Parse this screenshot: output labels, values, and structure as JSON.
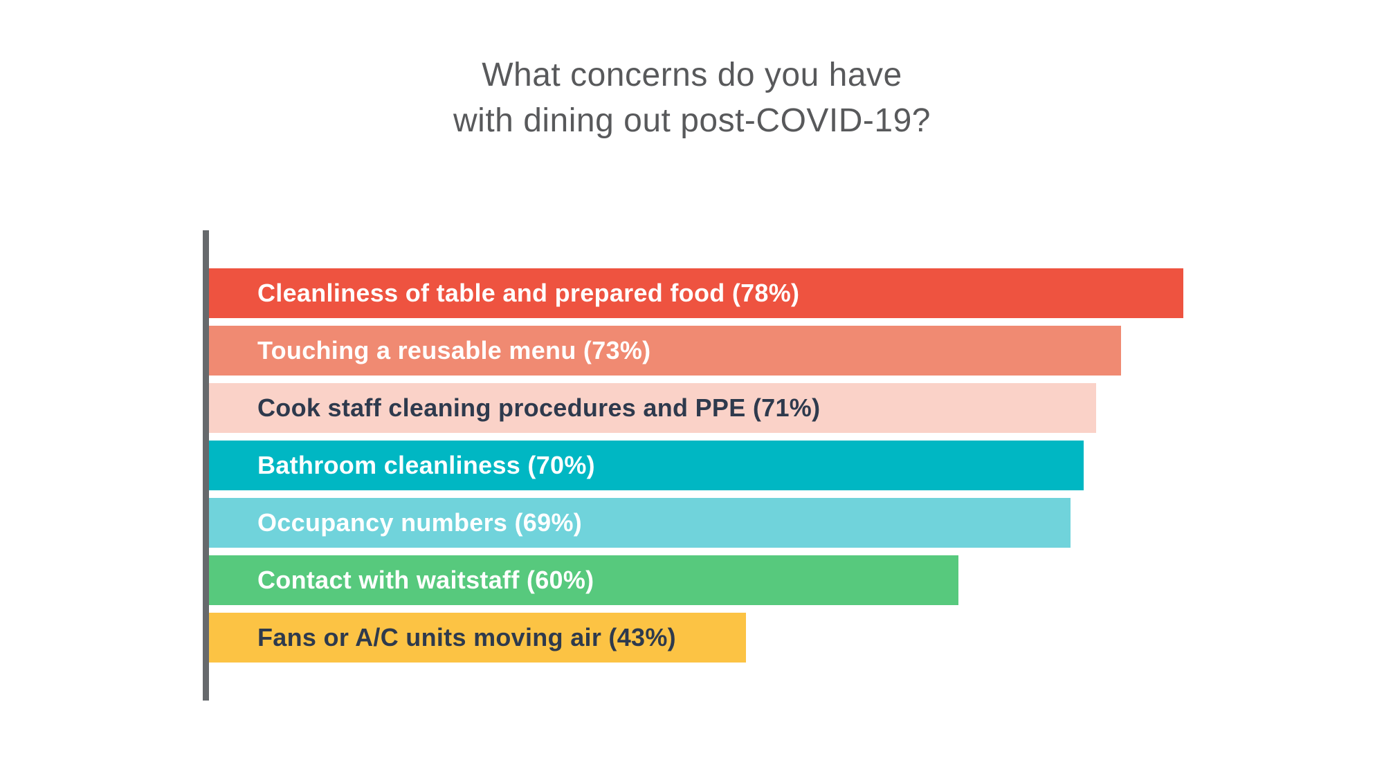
{
  "title": {
    "line1": "What concerns do you have",
    "line2": "with dining out post-COVID-19?"
  },
  "chart_data": {
    "type": "bar",
    "orientation": "horizontal",
    "title": "What concerns do you have with dining out post-COVID-19?",
    "categories": [
      "Cleanliness of table and prepared food",
      "Touching a reusable menu",
      "Cook staff cleaning procedures and PPE",
      "Bathroom cleanliness",
      "Occupancy numbers",
      "Contact with waitstaff",
      "Fans or A/C units moving air"
    ],
    "values": [
      78,
      73,
      71,
      70,
      69,
      60,
      43
    ],
    "bar_labels": [
      "Cleanliness of table and prepared food (78%)",
      "Touching a reusable menu (73%)",
      "Cook staff cleaning procedures and PPE (71%)",
      "Bathroom cleanliness (70%)",
      "Occupancy numbers (69%)",
      "Contact with waitstaff (60%)",
      "Fans or A/C units moving air (43%)"
    ],
    "bar_colors": [
      "#EE5340",
      "#F08A72",
      "#FAD2C8",
      "#00B7C3",
      "#70D3DB",
      "#57C97D",
      "#FCC344"
    ],
    "label_text_colors": [
      "#FFFFFF",
      "#FFFFFF",
      "#2E3A4D",
      "#FFFFFF",
      "#FFFFFF",
      "#FFFFFF",
      "#2E3A4D"
    ],
    "xlabel": "",
    "ylabel": "",
    "xlim": [
      0,
      100
    ],
    "value_unit": "%",
    "grid": false,
    "legend": "none",
    "axis_color": "#66696C",
    "title_color": "#58595B",
    "background_color": "#FFFFFF"
  }
}
